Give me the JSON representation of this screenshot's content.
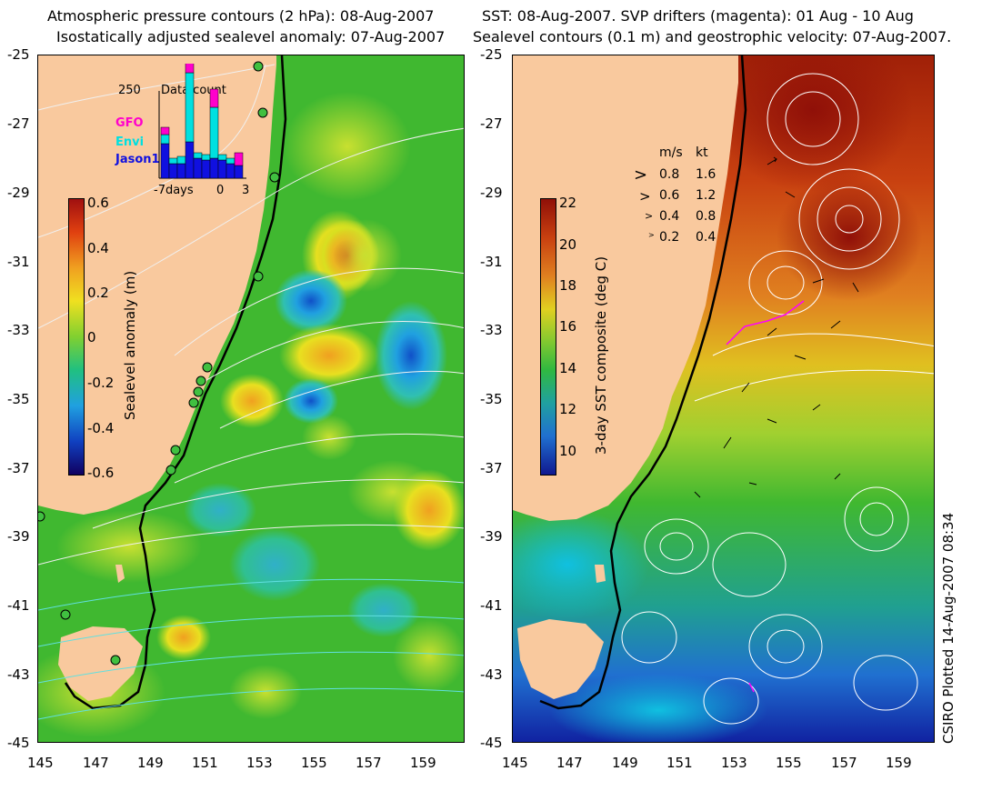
{
  "left_panel": {
    "title_line1": "Atmospheric pressure contours (2 hPa): 08-Aug-2007",
    "title_line2": "Isostatically adjusted sealevel anomaly: 07-Aug-2007",
    "colorbar": {
      "label": "Sealevel anomaly (m)",
      "ticks": [
        "0.6",
        "0.4",
        "0.2",
        "0",
        "-0.2",
        "-0.4",
        "-0.6"
      ]
    },
    "data_count": {
      "max_label": "250",
      "title": "Data count",
      "legend": [
        "GFO",
        "Envi",
        "Jason1"
      ],
      "legend_colors": [
        "#ff00cc",
        "#00e0e0",
        "#1010e0"
      ],
      "x_ticks": [
        "-7days",
        "0",
        "3"
      ]
    }
  },
  "right_panel": {
    "title_line1": "SST: 08-Aug-2007. SVP drifters (magenta): 01 Aug - 10 Aug",
    "title_line2": "Sealevel contours (0.1 m) and geostrophic velocity: 07-Aug-2007.",
    "colorbar": {
      "label": "3-day SST composite (deg C)",
      "ticks": [
        "22",
        "20",
        "18",
        "16",
        "14",
        "12",
        "10"
      ]
    },
    "velocity_legend": {
      "header_ms": "m/s",
      "header_kt": "kt",
      "rows": [
        {
          "ms": "0.8",
          "kt": "1.6"
        },
        {
          "ms": "0.6",
          "kt": "1.2"
        },
        {
          "ms": "0.4",
          "kt": "0.8"
        },
        {
          "ms": "0.2",
          "kt": "0.4"
        }
      ]
    }
  },
  "axes": {
    "lat_ticks": [
      "-25",
      "-27",
      "-29",
      "-31",
      "-33",
      "-35",
      "-37",
      "-39",
      "-41",
      "-43",
      "-45"
    ],
    "lon_ticks": [
      "145",
      "147",
      "149",
      "151",
      "153",
      "155",
      "157",
      "159"
    ]
  },
  "credit": "CSIRO Plotted 14-Aug-2007 08:34",
  "colors": {
    "land": "#f9c99e",
    "shelf_line": "#000000",
    "ssh_high": "#d04010",
    "ssh_low": "#1060d0",
    "sst_warm": "#a02008",
    "sst_cold": "#0a1a90",
    "drifter": "#ff00ff"
  }
}
